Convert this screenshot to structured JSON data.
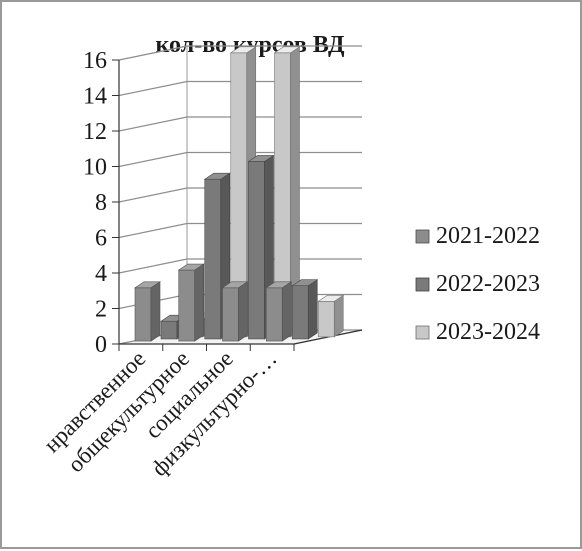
{
  "chart_data": {
    "type": "bar",
    "title": "кол-во курсов ВД",
    "categories": [
      "нравственное",
      "общекультурное",
      "социальное",
      "физкультурно-…"
    ],
    "series": [
      {
        "name": "2021-2022",
        "values": [
          3,
          4,
          3,
          3
        ],
        "color": "#8c8c8c"
      },
      {
        "name": "2022-2023",
        "values": [
          1,
          9,
          10,
          3
        ],
        "color": "#7a7a7a"
      },
      {
        "name": "2023-2024",
        "values": [
          1,
          16,
          16,
          2
        ],
        "color": "#c8c8c8"
      }
    ],
    "yticks": [
      "0",
      "2",
      "4",
      "6",
      "8",
      "10",
      "12",
      "14",
      "16"
    ],
    "ylim": [
      0,
      16
    ],
    "grid": true,
    "legend_position": "right",
    "three_d": true
  }
}
